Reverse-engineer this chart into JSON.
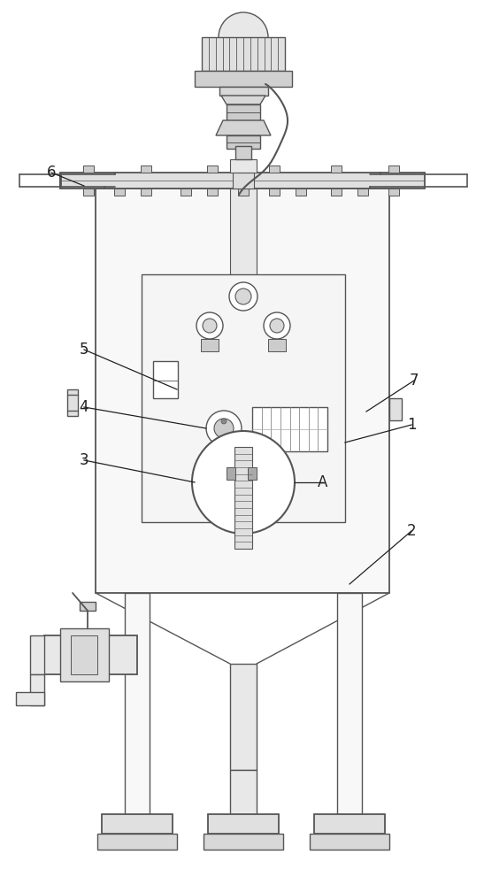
{
  "fig_width": 5.47,
  "fig_height": 10.0,
  "dpi": 100,
  "bg_color": "#ffffff",
  "lc": "#555555",
  "lw": 1.0,
  "xlim": [
    0,
    547
  ],
  "ylim": [
    0,
    1000
  ]
}
